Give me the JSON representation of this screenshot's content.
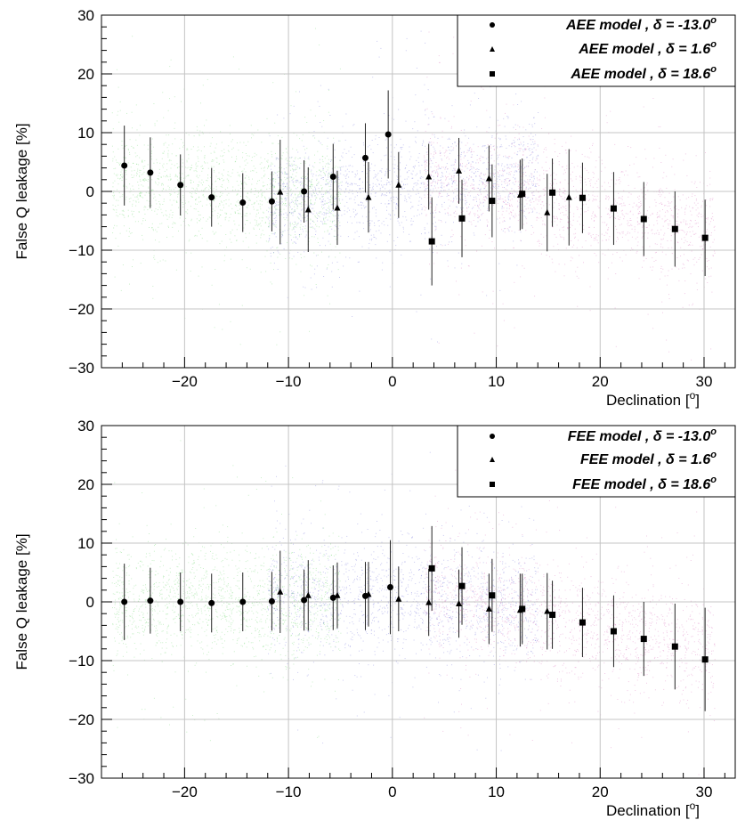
{
  "chart_data": [
    {
      "type": "scatter",
      "xlabel": "Declination [",
      "xlabel_sup": "o",
      "xlabel_close": "]",
      "ylabel": "False Q leakage [%]",
      "xlim": [
        -28,
        33
      ],
      "ylim": [
        -30,
        30
      ],
      "xticks": [
        -20,
        -10,
        0,
        10,
        20,
        30
      ],
      "yticks": [
        -30,
        -20,
        -10,
        0,
        10,
        20,
        30
      ],
      "grid": true,
      "legend_position": "top-right",
      "background_colors": {
        "dec_-13": "#3cc83c",
        "dec_1_6": "#3c3ccc",
        "dec_18_6": "#cc3ca0"
      },
      "series": [
        {
          "name": "AEE model , δ = -13.0",
          "name_sup": "o",
          "marker": "circle",
          "x": [
            -25.8,
            -23.3,
            -20.4,
            -17.4,
            -14.4,
            -11.6,
            -8.5,
            -5.7,
            -2.6,
            -0.4
          ],
          "y": [
            4.4,
            3.2,
            1.1,
            -1.0,
            -1.9,
            -1.7,
            0.0,
            2.5,
            5.7,
            9.7
          ],
          "err": [
            6.8,
            6.0,
            5.2,
            5.0,
            5.0,
            5.1,
            5.3,
            5.6,
            5.9,
            7.5
          ]
        },
        {
          "name": "AEE model , δ = 1.6",
          "name_sup": "o",
          "marker": "triangle",
          "x": [
            -10.8,
            -8.1,
            -5.3,
            -2.3,
            0.6,
            3.5,
            6.4,
            9.3,
            12.3,
            14.9,
            17.0
          ],
          "y": [
            -0.1,
            -3.1,
            -2.8,
            -1.0,
            1.1,
            2.5,
            3.5,
            2.2,
            -0.6,
            -3.6,
            -1.0
          ],
          "err": [
            8.9,
            7.2,
            6.3,
            6.0,
            5.6,
            5.6,
            5.6,
            5.6,
            6.0,
            6.6,
            8.2
          ]
        },
        {
          "name": "AEE model , δ = 18.6",
          "name_sup": "o",
          "marker": "square",
          "x": [
            3.8,
            6.7,
            9.6,
            12.5,
            15.4,
            18.3,
            21.3,
            24.2,
            27.2,
            30.1
          ],
          "y": [
            -8.5,
            -4.6,
            -1.6,
            -0.4,
            -0.2,
            -1.1,
            -2.9,
            -4.7,
            -6.4,
            -7.9
          ],
          "err": [
            7.5,
            6.6,
            6.2,
            6.0,
            5.8,
            6.0,
            6.2,
            6.3,
            6.4,
            6.5
          ]
        }
      ]
    },
    {
      "type": "scatter",
      "xlabel": "Declination [",
      "xlabel_sup": "o",
      "xlabel_close": "]",
      "ylabel": "False Q leakage [%]",
      "xlim": [
        -28,
        33
      ],
      "ylim": [
        -30,
        30
      ],
      "xticks": [
        -20,
        -10,
        0,
        10,
        20,
        30
      ],
      "yticks": [
        -30,
        -20,
        -10,
        0,
        10,
        20,
        30
      ],
      "grid": true,
      "legend_position": "top-right",
      "background_colors": {
        "dec_-13": "#3cc83c",
        "dec_1_6": "#3c3ccc",
        "dec_18_6": "#cc3ca0"
      },
      "series": [
        {
          "name": "FEE model , δ = -13.0",
          "name_sup": "o",
          "marker": "circle",
          "x": [
            -25.8,
            -23.3,
            -20.4,
            -17.4,
            -14.4,
            -11.6,
            -8.5,
            -5.7,
            -2.6,
            -0.2
          ],
          "y": [
            0.0,
            0.2,
            0.0,
            -0.2,
            0.0,
            0.1,
            0.3,
            0.7,
            1.0,
            2.5
          ],
          "err": [
            6.5,
            5.6,
            5.0,
            5.0,
            5.0,
            5.0,
            5.2,
            5.5,
            5.8,
            8.0
          ]
        },
        {
          "name": "FEE model , δ = 1.6",
          "name_sup": "o",
          "marker": "triangle",
          "x": [
            -10.8,
            -8.1,
            -5.3,
            -2.3,
            0.6,
            3.5,
            6.4,
            9.3,
            12.3,
            14.9
          ],
          "y": [
            1.7,
            1.1,
            1.1,
            1.3,
            0.5,
            -0.1,
            -0.3,
            -1.2,
            -1.4,
            -1.6
          ],
          "err": [
            7.0,
            6.0,
            5.6,
            5.5,
            5.5,
            5.7,
            5.8,
            6.0,
            6.2,
            6.5
          ]
        },
        {
          "name": "FEE model , δ = 18.6",
          "name_sup": "o",
          "marker": "square",
          "x": [
            3.8,
            6.7,
            9.6,
            12.5,
            15.4,
            18.3,
            21.3,
            24.2,
            27.2,
            30.1
          ],
          "y": [
            5.7,
            2.7,
            1.1,
            -1.2,
            -2.2,
            -3.5,
            -5.0,
            -6.3,
            -7.6,
            -9.8
          ],
          "err": [
            7.2,
            6.6,
            6.2,
            6.0,
            5.8,
            5.9,
            6.1,
            6.3,
            7.3,
            8.8
          ]
        }
      ]
    }
  ]
}
